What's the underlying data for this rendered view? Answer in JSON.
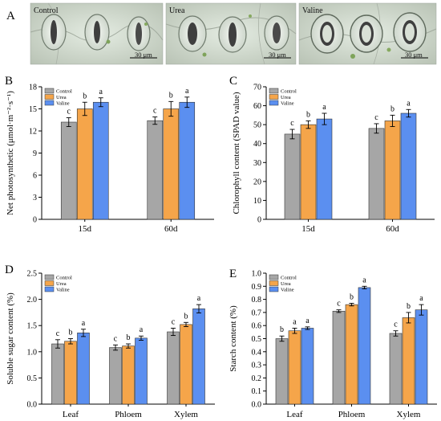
{
  "colors": {
    "control": "#a6a6a6",
    "urea": "#f5a54a",
    "valine": "#5b8ff0"
  },
  "micrographs": {
    "label": "A",
    "panels": [
      {
        "title": "Control",
        "scale": "30 μm"
      },
      {
        "title": "Urea",
        "scale": "30 μm"
      },
      {
        "title": "Valine",
        "scale": "30 μm"
      }
    ]
  },
  "chart_data": [
    {
      "panel": "B",
      "type": "bar",
      "ylabel": "Net photosynthetic (μmol·m⁻²·s⁻¹)",
      "xlabel": "",
      "ylim": [
        0,
        18
      ],
      "yticks": [
        "0",
        "3",
        "6",
        "9",
        "12",
        "15",
        "18"
      ],
      "categories": [
        "15d",
        "60d"
      ],
      "legend": "top-left",
      "grid": false,
      "series": [
        {
          "name": "Control",
          "values": [
            13.2,
            13.4
          ],
          "errors": [
            0.6,
            0.5
          ],
          "letters": [
            "c",
            "c"
          ]
        },
        {
          "name": "Urea",
          "values": [
            15.0,
            15.0
          ],
          "errors": [
            0.9,
            1.0
          ],
          "letters": [
            "b",
            "b"
          ]
        },
        {
          "name": "Valine",
          "values": [
            15.9,
            15.9
          ],
          "errors": [
            0.6,
            0.7
          ],
          "letters": [
            "a",
            "a"
          ]
        }
      ]
    },
    {
      "panel": "C",
      "type": "bar",
      "ylabel": "Chlorophyll content (SPAD value)",
      "xlabel": "",
      "ylim": [
        0,
        70
      ],
      "yticks": [
        "0",
        "10",
        "20",
        "30",
        "40",
        "50",
        "60",
        "70"
      ],
      "categories": [
        "15d",
        "60d"
      ],
      "legend": "top-left",
      "grid": false,
      "series": [
        {
          "name": "Control",
          "values": [
            45,
            48
          ],
          "errors": [
            2.5,
            2.5
          ],
          "letters": [
            "c",
            "c"
          ]
        },
        {
          "name": "Urea",
          "values": [
            50,
            52
          ],
          "errors": [
            2.0,
            3.0
          ],
          "letters": [
            "b",
            "b"
          ]
        },
        {
          "name": "Valine",
          "values": [
            53,
            56
          ],
          "errors": [
            3.0,
            2.0
          ],
          "letters": [
            "a",
            "a"
          ]
        }
      ]
    },
    {
      "panel": "D",
      "type": "bar",
      "ylabel": "Soluble sugar content  (%)",
      "xlabel": "",
      "ylim": [
        0,
        2.5
      ],
      "yticks": [
        "0.0",
        "0.5",
        "1.0",
        "1.5",
        "2.0",
        "2.5"
      ],
      "categories": [
        "Leaf",
        "Phloem",
        "Xylem"
      ],
      "legend": "top-left",
      "grid": false,
      "series": [
        {
          "name": "Control",
          "values": [
            1.15,
            1.08,
            1.38
          ],
          "errors": [
            0.08,
            0.05,
            0.07
          ],
          "letters": [
            "c",
            "c",
            "c"
          ]
        },
        {
          "name": "Urea",
          "values": [
            1.2,
            1.11,
            1.52
          ],
          "errors": [
            0.05,
            0.04,
            0.04
          ],
          "letters": [
            "b",
            "b",
            "b"
          ]
        },
        {
          "name": "Valine",
          "values": [
            1.36,
            1.26,
            1.82
          ],
          "errors": [
            0.07,
            0.04,
            0.08
          ],
          "letters": [
            "a",
            "a",
            "a"
          ]
        }
      ]
    },
    {
      "panel": "E",
      "type": "bar",
      "ylabel": "Starch content  (%)",
      "xlabel": "",
      "ylim": [
        0,
        1.0
      ],
      "yticks": [
        "0.0",
        "0.1",
        "0.2",
        "0.3",
        "0.4",
        "0.5",
        "0.6",
        "0.7",
        "0.8",
        "0.9",
        "1.0"
      ],
      "categories": [
        "Leaf",
        "Phloem",
        "Xylem"
      ],
      "legend": "top-left",
      "grid": false,
      "series": [
        {
          "name": "Control",
          "values": [
            0.5,
            0.71,
            0.54
          ],
          "errors": [
            0.02,
            0.01,
            0.02
          ],
          "letters": [
            "b",
            "c",
            "c"
          ]
        },
        {
          "name": "Urea",
          "values": [
            0.56,
            0.76,
            0.66
          ],
          "errors": [
            0.02,
            0.01,
            0.04
          ],
          "letters": [
            "a",
            "b",
            "b"
          ]
        },
        {
          "name": "Valine",
          "values": [
            0.58,
            0.89,
            0.72
          ],
          "errors": [
            0.01,
            0.01,
            0.04
          ],
          "letters": [
            "a",
            "a",
            "a"
          ]
        }
      ]
    }
  ]
}
